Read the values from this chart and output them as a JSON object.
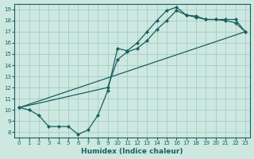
{
  "xlabel": "Humidex (Indice chaleur)",
  "bg_color": "#cce8e0",
  "line_color": "#1a5f5f",
  "grid_color": "#a8ccc4",
  "xlim": [
    -0.5,
    23.5
  ],
  "ylim": [
    7.5,
    19.5
  ],
  "xticks": [
    0,
    1,
    2,
    3,
    4,
    5,
    6,
    7,
    8,
    9,
    10,
    11,
    12,
    13,
    14,
    15,
    16,
    17,
    18,
    19,
    20,
    21,
    22,
    23
  ],
  "yticks": [
    8,
    9,
    10,
    11,
    12,
    13,
    14,
    15,
    16,
    17,
    18,
    19
  ],
  "line1_x": [
    0,
    1,
    2,
    3,
    4,
    5,
    6,
    7,
    8,
    9,
    10,
    11,
    12,
    13,
    14,
    15,
    16,
    17,
    18,
    19,
    20,
    21,
    22,
    23
  ],
  "line1_y": [
    10.2,
    10.0,
    9.5,
    8.5,
    8.5,
    8.5,
    7.8,
    8.2,
    9.5,
    11.7,
    15.5,
    15.3,
    16.0,
    17.0,
    18.0,
    18.9,
    19.2,
    18.5,
    18.4,
    18.1,
    18.1,
    18.1,
    18.1,
    17.0
  ],
  "line2_x": [
    0,
    9,
    10,
    11,
    12,
    13,
    14,
    15,
    16,
    17,
    18,
    19,
    20,
    21,
    22,
    23
  ],
  "line2_y": [
    10.2,
    12.0,
    14.5,
    15.2,
    15.5,
    16.2,
    17.2,
    18.0,
    18.9,
    18.5,
    18.3,
    18.1,
    18.1,
    18.0,
    17.8,
    17.0
  ],
  "line3_x": [
    0,
    23
  ],
  "line3_y": [
    10.2,
    17.0
  ]
}
